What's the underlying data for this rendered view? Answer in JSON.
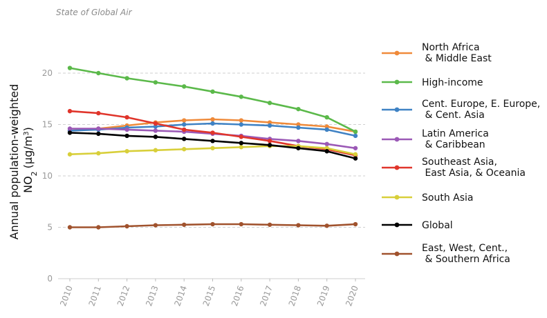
{
  "source_note": "State of Global Air",
  "colors": {
    "north_africa": "#ef8a3a",
    "high_income": "#5bb94a",
    "europe_asia": "#3f82c4",
    "latin_america": "#9b59b6",
    "southeast_asia": "#e0352b",
    "south_asia": "#d8cf3a",
    "global": "#000000",
    "africa": "#a0522d"
  },
  "chart_data": {
    "type": "line",
    "title": "",
    "xlabel": "",
    "ylabel_main": "Annual population-weighted",
    "ylabel_pollutant": "NO",
    "ylabel_sub": "2",
    "ylabel_units": "(μg/m",
    "ylabel_sup": "3",
    "ylabel_close": ")",
    "ylim": [
      0,
      22
    ],
    "yticks": [
      0,
      5,
      10,
      15,
      20
    ],
    "x": [
      "2010",
      "2011",
      "2012",
      "2013",
      "2014",
      "2015",
      "2016",
      "2017",
      "2018",
      "2019",
      "2020"
    ],
    "legend_position": "right",
    "series": [
      {
        "name_lines": [
          "North Africa",
          "  & Middle East"
        ],
        "color_key": "north_africa",
        "values": [
          14.4,
          14.6,
          14.9,
          15.2,
          15.4,
          15.5,
          15.4,
          15.2,
          15.0,
          14.8,
          14.3
        ]
      },
      {
        "name_lines": [
          "High-income"
        ],
        "color_key": "high_income",
        "values": [
          20.5,
          20.0,
          19.5,
          19.1,
          18.7,
          18.2,
          17.7,
          17.1,
          16.5,
          15.7,
          14.3
        ]
      },
      {
        "name_lines": [
          "Cent. Europe, E. Europe,",
          "  & Cent. Asia"
        ],
        "color_key": "europe_asia",
        "values": [
          14.4,
          14.5,
          14.7,
          14.8,
          15.0,
          15.1,
          15.0,
          14.9,
          14.7,
          14.5,
          13.9
        ]
      },
      {
        "name_lines": [
          "Latin America",
          "  & Caribbean"
        ],
        "color_key": "latin_america",
        "values": [
          14.6,
          14.6,
          14.5,
          14.4,
          14.3,
          14.1,
          13.9,
          13.6,
          13.4,
          13.1,
          12.7
        ]
      },
      {
        "name_lines": [
          "Southeast Asia,",
          "  East Asia, & Oceania"
        ],
        "color_key": "southeast_asia",
        "values": [
          16.3,
          16.1,
          15.7,
          15.1,
          14.5,
          14.2,
          13.8,
          13.4,
          12.9,
          12.6,
          12.0
        ]
      },
      {
        "name_lines": [
          "South Asia"
        ],
        "color_key": "south_asia",
        "values": [
          12.1,
          12.2,
          12.4,
          12.5,
          12.6,
          12.7,
          12.8,
          12.9,
          12.9,
          12.7,
          12.1
        ]
      },
      {
        "name_lines": [
          "Global"
        ],
        "color_key": "global",
        "values": [
          14.2,
          14.1,
          13.9,
          13.8,
          13.6,
          13.4,
          13.2,
          13.0,
          12.7,
          12.4,
          11.7
        ]
      },
      {
        "name_lines": [
          "East, West, Cent.,",
          "  & Southern Africa"
        ],
        "color_key": "africa",
        "values": [
          5.0,
          5.0,
          5.1,
          5.2,
          5.25,
          5.3,
          5.3,
          5.25,
          5.2,
          5.15,
          5.3
        ]
      }
    ]
  }
}
